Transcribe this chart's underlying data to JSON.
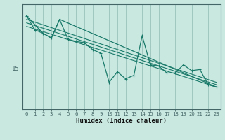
{
  "bg_color": "#c8e8e0",
  "line_color": "#1a7a6a",
  "grid_color": "#a0c8c0",
  "xlabel": "Humidex (Indice chaleur)",
  "ytick_labels": [
    "15"
  ],
  "ytick_values": [
    15
  ],
  "xlim": [
    -0.5,
    23.5
  ],
  "ylim": [
    11.5,
    20.5
  ],
  "figsize": [
    3.2,
    2.0
  ],
  "dpi": 100,
  "x_ticks": [
    0,
    1,
    2,
    3,
    4,
    5,
    6,
    7,
    8,
    9,
    10,
    11,
    12,
    13,
    14,
    15,
    16,
    17,
    18,
    19,
    20,
    21,
    22,
    23
  ],
  "series1": [
    19.5,
    18.3,
    18.0,
    17.6,
    19.2,
    17.5,
    17.3,
    17.2,
    16.6,
    16.3,
    13.8,
    14.7,
    14.1,
    14.4,
    17.8,
    15.3,
    15.2,
    14.6,
    14.6,
    15.3,
    14.8,
    14.9,
    13.6,
    13.4
  ],
  "series2_x": [
    0,
    2,
    3,
    4,
    23
  ],
  "series2_y": [
    19.5,
    18.0,
    17.6,
    19.2,
    13.4
  ],
  "trend1_x": [
    0,
    23
  ],
  "trend1_y": [
    19.2,
    13.8
  ],
  "trend2_x": [
    0,
    23
  ],
  "trend2_y": [
    18.9,
    13.6
  ],
  "trend3_x": [
    0,
    23
  ],
  "trend3_y": [
    18.6,
    13.4
  ],
  "hline_color": "#cc3333",
  "hline_y": 15,
  "marker": "+",
  "marker_size": 3,
  "linewidth": 0.9
}
